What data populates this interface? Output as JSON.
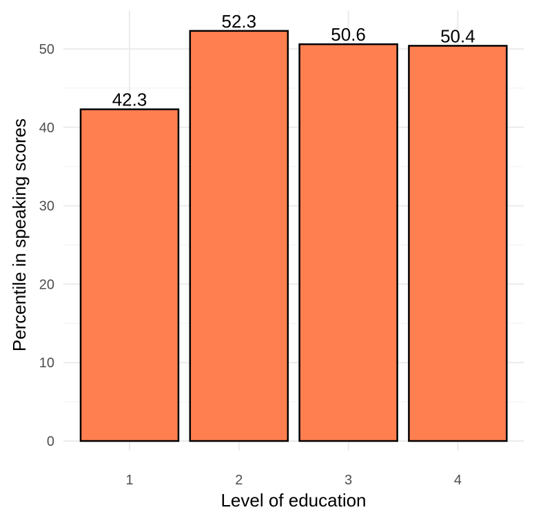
{
  "chart_data": {
    "type": "bar",
    "categories": [
      "1",
      "2",
      "3",
      "4"
    ],
    "values": [
      42.3,
      52.3,
      50.6,
      50.4
    ],
    "data_labels": [
      "42.3",
      "52.3",
      "50.6",
      "50.4"
    ],
    "xlabel": "Level of education",
    "ylabel": "Percentile in speaking scores",
    "ylim": [
      0,
      55
    ],
    "yticks": [
      0,
      10,
      20,
      30,
      40,
      50
    ],
    "ytick_labels": [
      "0",
      "10",
      "20",
      "30",
      "40",
      "50"
    ],
    "grid": true,
    "legend": "none",
    "colors": {
      "bar_fill": "#FF7F50",
      "bar_outline": "#000000"
    }
  }
}
